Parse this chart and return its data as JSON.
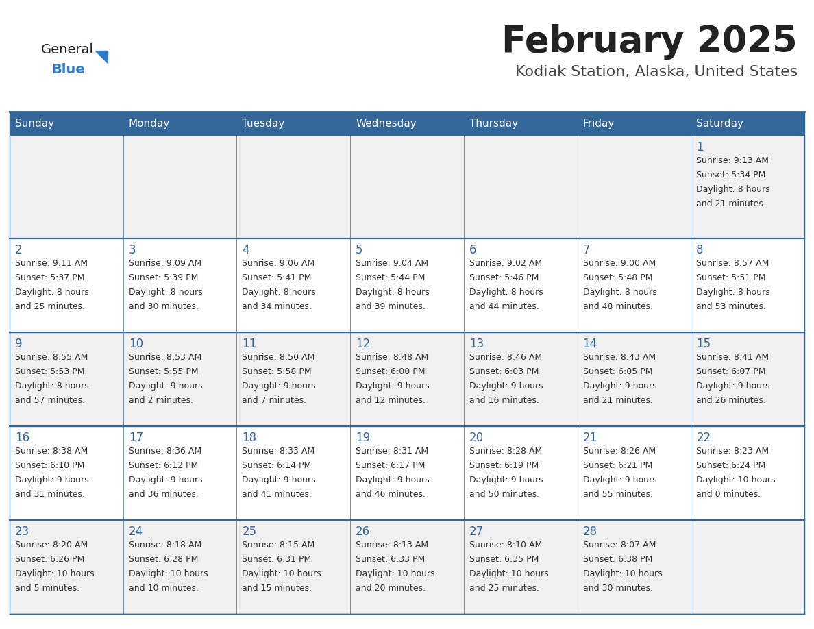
{
  "title": "February 2025",
  "subtitle": "Kodiak Station, Alaska, United States",
  "days_of_week": [
    "Sunday",
    "Monday",
    "Tuesday",
    "Wednesday",
    "Thursday",
    "Friday",
    "Saturday"
  ],
  "header_bg": "#336699",
  "header_text": "#FFFFFF",
  "row_bg_even": "#F0F0F0",
  "row_bg_odd": "#FFFFFF",
  "cell_text_color": "#333333",
  "day_number_color": "#336699",
  "border_color": "#336699",
  "title_color": "#222222",
  "subtitle_color": "#444444",
  "logo_general_color": "#222222",
  "logo_blue_color": "#2E7BC4",
  "calendar": [
    [
      {
        "day": null,
        "info": null
      },
      {
        "day": null,
        "info": null
      },
      {
        "day": null,
        "info": null
      },
      {
        "day": null,
        "info": null
      },
      {
        "day": null,
        "info": null
      },
      {
        "day": null,
        "info": null
      },
      {
        "day": 1,
        "info": "Sunrise: 9:13 AM\nSunset: 5:34 PM\nDaylight: 8 hours\nand 21 minutes."
      }
    ],
    [
      {
        "day": 2,
        "info": "Sunrise: 9:11 AM\nSunset: 5:37 PM\nDaylight: 8 hours\nand 25 minutes."
      },
      {
        "day": 3,
        "info": "Sunrise: 9:09 AM\nSunset: 5:39 PM\nDaylight: 8 hours\nand 30 minutes."
      },
      {
        "day": 4,
        "info": "Sunrise: 9:06 AM\nSunset: 5:41 PM\nDaylight: 8 hours\nand 34 minutes."
      },
      {
        "day": 5,
        "info": "Sunrise: 9:04 AM\nSunset: 5:44 PM\nDaylight: 8 hours\nand 39 minutes."
      },
      {
        "day": 6,
        "info": "Sunrise: 9:02 AM\nSunset: 5:46 PM\nDaylight: 8 hours\nand 44 minutes."
      },
      {
        "day": 7,
        "info": "Sunrise: 9:00 AM\nSunset: 5:48 PM\nDaylight: 8 hours\nand 48 minutes."
      },
      {
        "day": 8,
        "info": "Sunrise: 8:57 AM\nSunset: 5:51 PM\nDaylight: 8 hours\nand 53 minutes."
      }
    ],
    [
      {
        "day": 9,
        "info": "Sunrise: 8:55 AM\nSunset: 5:53 PM\nDaylight: 8 hours\nand 57 minutes."
      },
      {
        "day": 10,
        "info": "Sunrise: 8:53 AM\nSunset: 5:55 PM\nDaylight: 9 hours\nand 2 minutes."
      },
      {
        "day": 11,
        "info": "Sunrise: 8:50 AM\nSunset: 5:58 PM\nDaylight: 9 hours\nand 7 minutes."
      },
      {
        "day": 12,
        "info": "Sunrise: 8:48 AM\nSunset: 6:00 PM\nDaylight: 9 hours\nand 12 minutes."
      },
      {
        "day": 13,
        "info": "Sunrise: 8:46 AM\nSunset: 6:03 PM\nDaylight: 9 hours\nand 16 minutes."
      },
      {
        "day": 14,
        "info": "Sunrise: 8:43 AM\nSunset: 6:05 PM\nDaylight: 9 hours\nand 21 minutes."
      },
      {
        "day": 15,
        "info": "Sunrise: 8:41 AM\nSunset: 6:07 PM\nDaylight: 9 hours\nand 26 minutes."
      }
    ],
    [
      {
        "day": 16,
        "info": "Sunrise: 8:38 AM\nSunset: 6:10 PM\nDaylight: 9 hours\nand 31 minutes."
      },
      {
        "day": 17,
        "info": "Sunrise: 8:36 AM\nSunset: 6:12 PM\nDaylight: 9 hours\nand 36 minutes."
      },
      {
        "day": 18,
        "info": "Sunrise: 8:33 AM\nSunset: 6:14 PM\nDaylight: 9 hours\nand 41 minutes."
      },
      {
        "day": 19,
        "info": "Sunrise: 8:31 AM\nSunset: 6:17 PM\nDaylight: 9 hours\nand 46 minutes."
      },
      {
        "day": 20,
        "info": "Sunrise: 8:28 AM\nSunset: 6:19 PM\nDaylight: 9 hours\nand 50 minutes."
      },
      {
        "day": 21,
        "info": "Sunrise: 8:26 AM\nSunset: 6:21 PM\nDaylight: 9 hours\nand 55 minutes."
      },
      {
        "day": 22,
        "info": "Sunrise: 8:23 AM\nSunset: 6:24 PM\nDaylight: 10 hours\nand 0 minutes."
      }
    ],
    [
      {
        "day": 23,
        "info": "Sunrise: 8:20 AM\nSunset: 6:26 PM\nDaylight: 10 hours\nand 5 minutes."
      },
      {
        "day": 24,
        "info": "Sunrise: 8:18 AM\nSunset: 6:28 PM\nDaylight: 10 hours\nand 10 minutes."
      },
      {
        "day": 25,
        "info": "Sunrise: 8:15 AM\nSunset: 6:31 PM\nDaylight: 10 hours\nand 15 minutes."
      },
      {
        "day": 26,
        "info": "Sunrise: 8:13 AM\nSunset: 6:33 PM\nDaylight: 10 hours\nand 20 minutes."
      },
      {
        "day": 27,
        "info": "Sunrise: 8:10 AM\nSunset: 6:35 PM\nDaylight: 10 hours\nand 25 minutes."
      },
      {
        "day": 28,
        "info": "Sunrise: 8:07 AM\nSunset: 6:38 PM\nDaylight: 10 hours\nand 30 minutes."
      },
      {
        "day": null,
        "info": null
      }
    ]
  ]
}
